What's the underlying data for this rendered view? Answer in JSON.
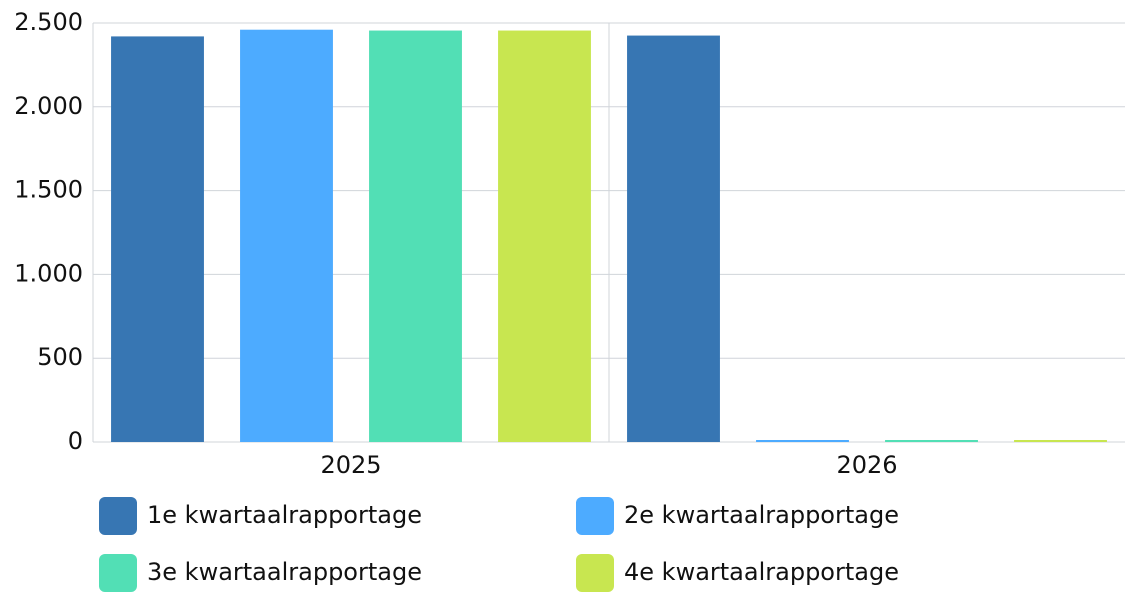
{
  "chart_data": {
    "type": "bar",
    "categories": [
      "2025",
      "2026"
    ],
    "series": [
      {
        "name": "1e kwartaalrapportage",
        "color": "#3776b3",
        "values": [
          2420,
          2425
        ]
      },
      {
        "name": "2e kwartaalrapportage",
        "color": "#4dabff",
        "values": [
          2460,
          0
        ]
      },
      {
        "name": "3e kwartaalrapportage",
        "color": "#52dfb5",
        "values": [
          2455,
          0
        ]
      },
      {
        "name": "4e kwartaalrapportage",
        "color": "#c8e650",
        "values": [
          2455,
          0
        ]
      }
    ],
    "ylim": [
      0,
      2500
    ],
    "yticks": [
      0,
      500,
      {
        "value": 1000,
        "label": "1.000"
      },
      {
        "value": 1500,
        "label": "1.500"
      },
      {
        "value": 2000,
        "label": "2.000"
      },
      {
        "value": 2500,
        "label": "2.500"
      }
    ],
    "grid": true,
    "legend": "bottom"
  }
}
